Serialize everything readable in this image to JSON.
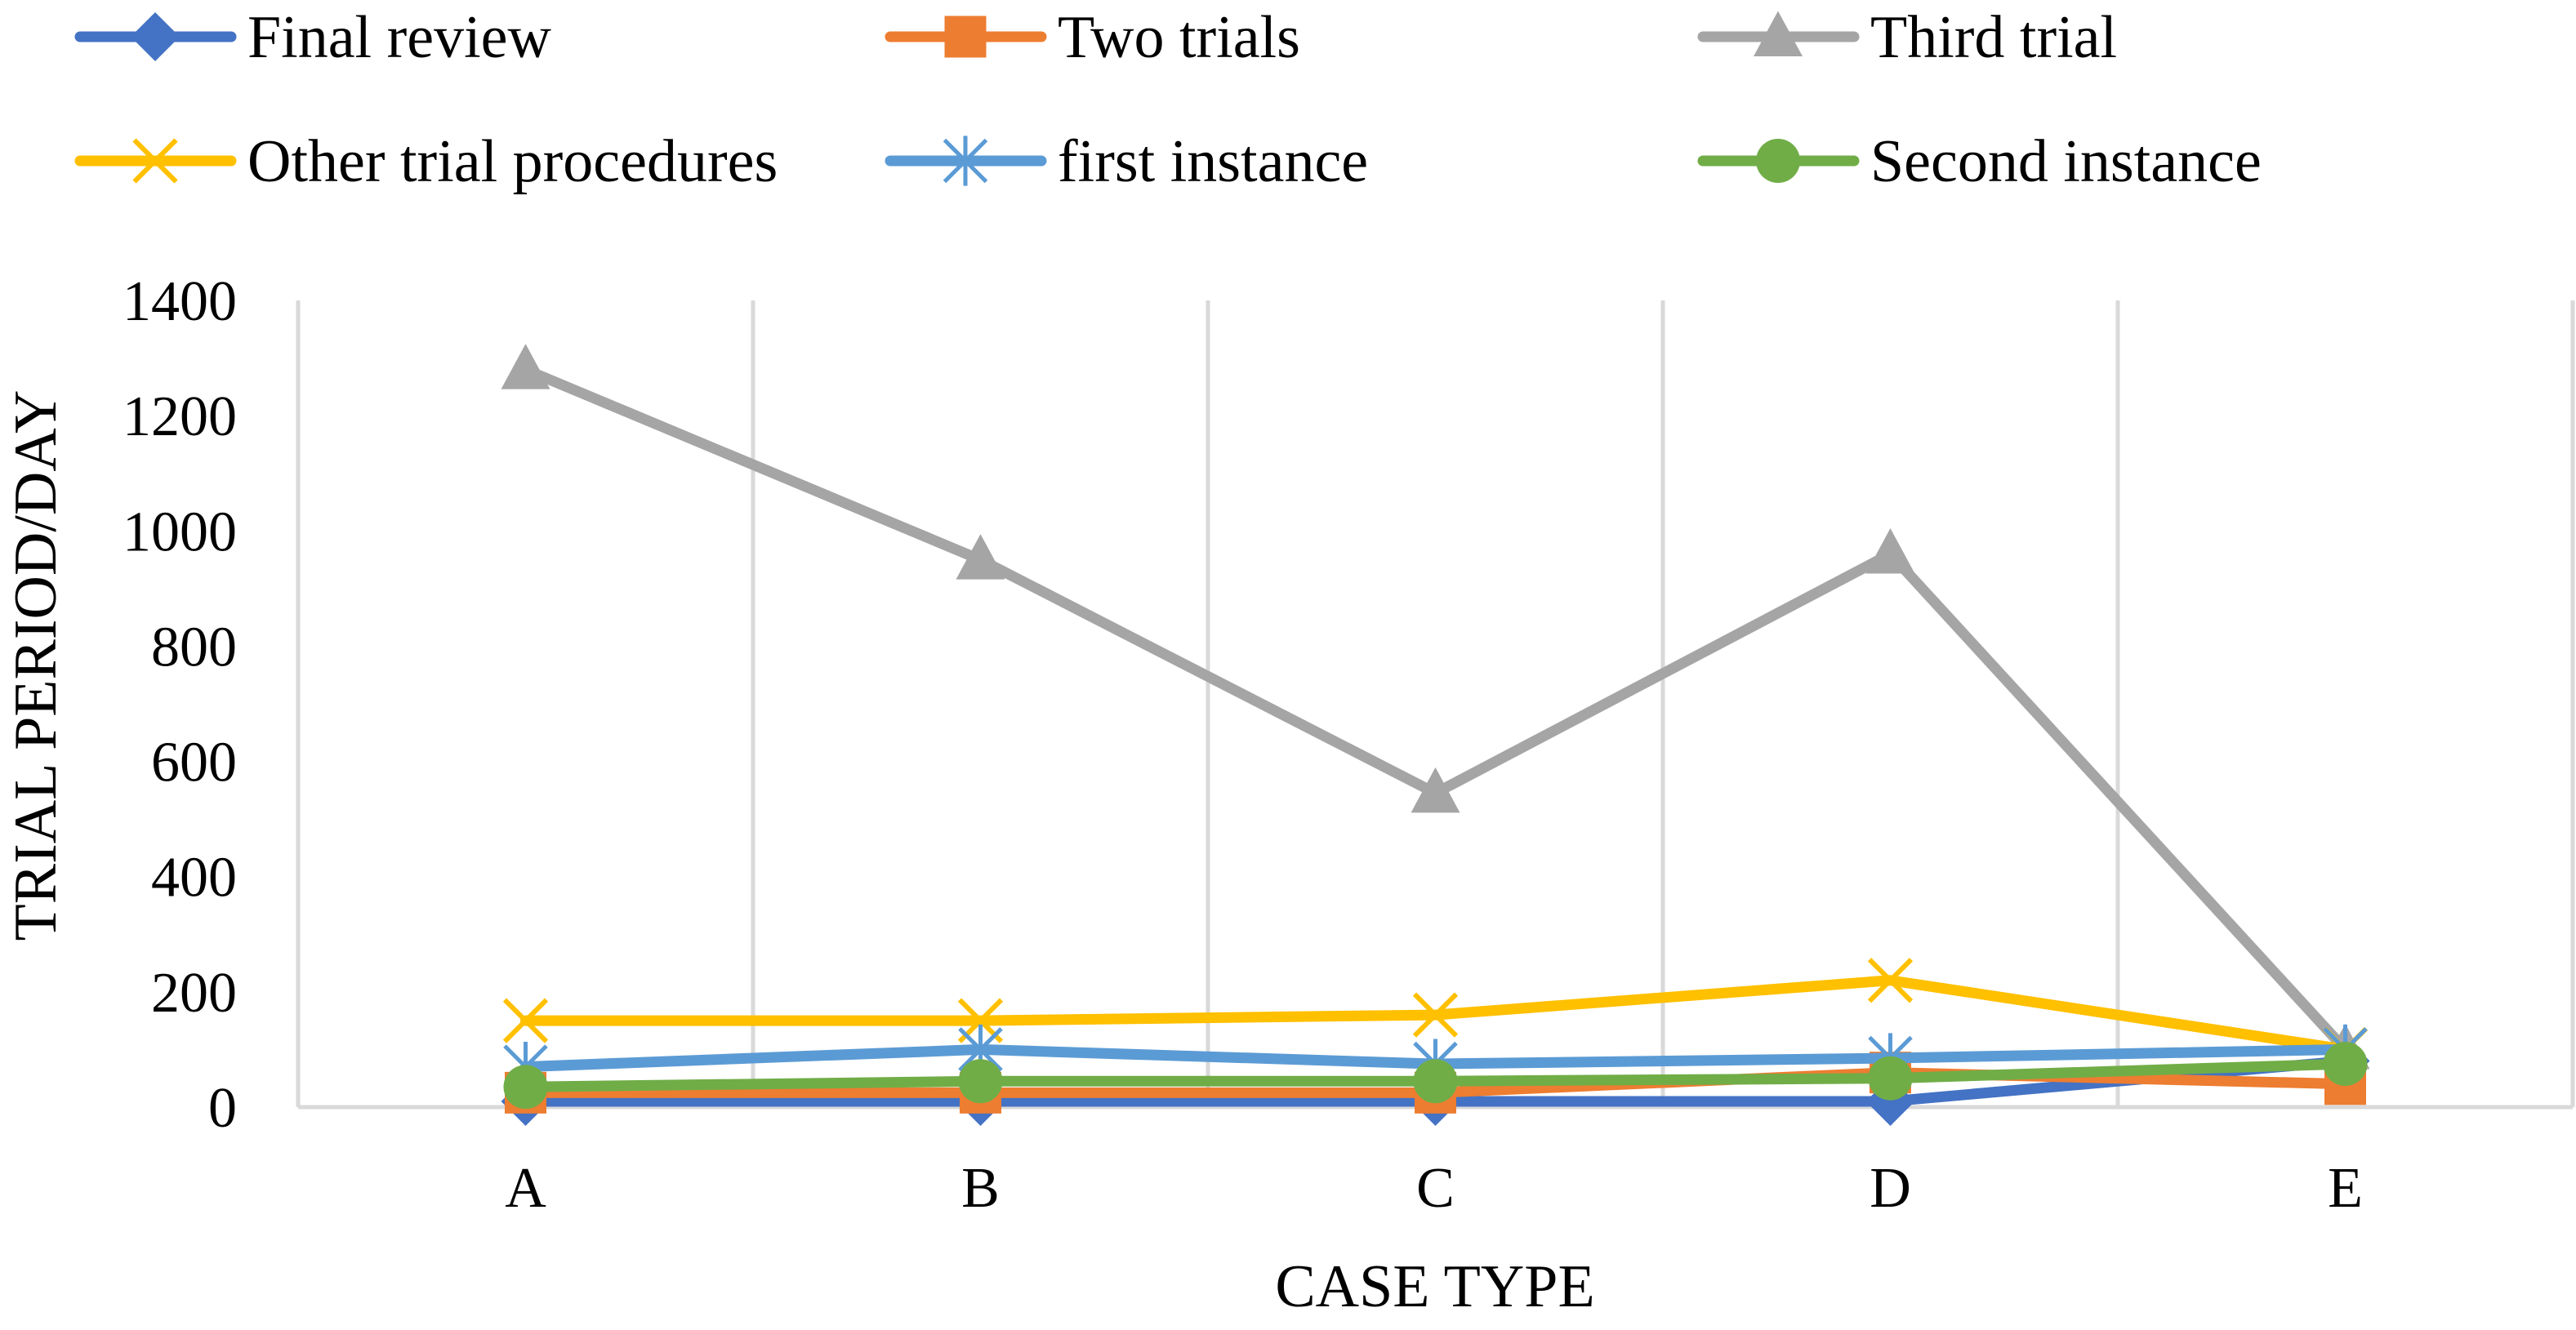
{
  "chart_data": {
    "type": "line",
    "title": "",
    "xlabel": "CASE TYPE",
    "ylabel": "TRIAL PERIOD/DAY",
    "categories": [
      "A",
      "B",
      "C",
      "D",
      "E"
    ],
    "ylim": [
      0,
      1400
    ],
    "yticks": [
      0,
      200,
      400,
      600,
      800,
      1000,
      1200,
      1400
    ],
    "grid": "vertical",
    "legend_position": "top",
    "series": [
      {
        "name": "Final review",
        "color": "#4472C4",
        "marker": "diamond",
        "values": [
          10,
          10,
          10,
          10,
          80
        ]
      },
      {
        "name": "Two trials",
        "color": "#ED7D31",
        "marker": "square",
        "values": [
          25,
          25,
          25,
          60,
          40
        ]
      },
      {
        "name": "Third trial",
        "color": "#A5A5A5",
        "marker": "triangle",
        "values": [
          1280,
          950,
          545,
          960,
          100
        ]
      },
      {
        "name": "Other trial procedures",
        "color": "#FFC000",
        "marker": "x",
        "values": [
          150,
          150,
          160,
          220,
          100
        ]
      },
      {
        "name": " first instance",
        "color": "#5B9BD5",
        "marker": "star",
        "values": [
          70,
          100,
          75,
          85,
          100
        ]
      },
      {
        "name": "Second instance",
        "color": "#70AD47",
        "marker": "circle",
        "values": [
          35,
          45,
          45,
          50,
          75
        ]
      }
    ]
  }
}
